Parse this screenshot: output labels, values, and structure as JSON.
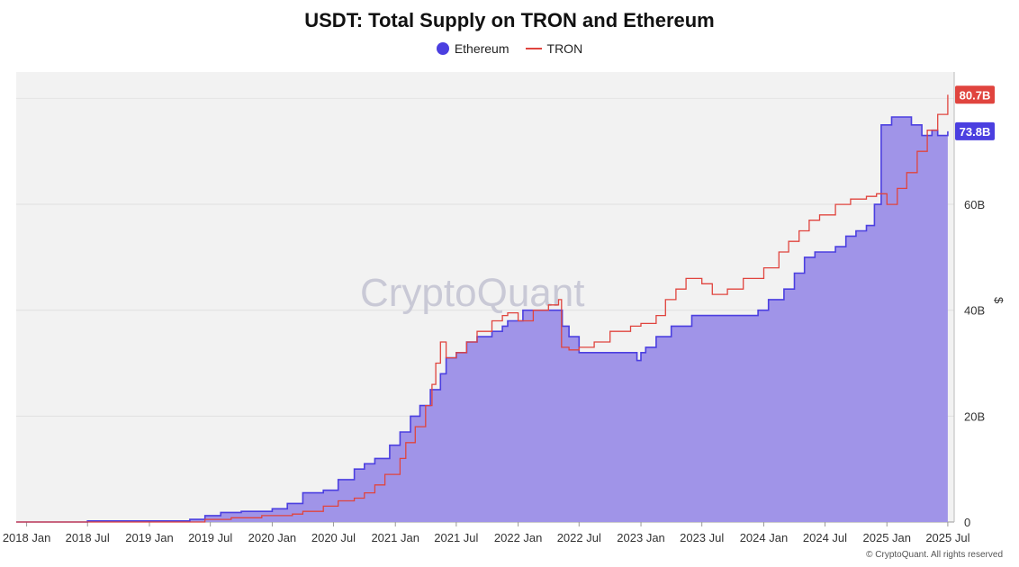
{
  "chart_data": {
    "type": "area",
    "title": "USDT: Total Supply on TRON and Ethereum",
    "xlabel": "",
    "ylabel": "$",
    "x_ticks": [
      "2018 Jan",
      "2018 Jul",
      "2019 Jan",
      "2019 Jul",
      "2020 Jan",
      "2020 Jul",
      "2021 Jan",
      "2021 Jul",
      "2022 Jan",
      "2022 Jul",
      "2023 Jan",
      "2023 Jul",
      "2024 Jan",
      "2024 Jul",
      "2025 Jan",
      "2025 Jul"
    ],
    "y_ticks": [
      "0",
      "20B",
      "40B",
      "60B"
    ],
    "ylim": [
      0,
      85
    ],
    "watermark": "CryptoQuant",
    "credit": "© CryptoQuant. All rights reserved",
    "grid": true,
    "legend_position": "top-center",
    "series": [
      {
        "name": "Ethereum",
        "style": "area",
        "color": "#4b3fe0",
        "fill": "#a094e8",
        "last_value_label": "73.8B",
        "x": [
          "2017-12-01",
          "2018-07-01",
          "2019-05-01",
          "2019-06-15",
          "2019-08-01",
          "2019-10-01",
          "2020-01-01",
          "2020-02-15",
          "2020-04-01",
          "2020-06-01",
          "2020-07-15",
          "2020-09-01",
          "2020-10-01",
          "2020-11-01",
          "2020-12-15",
          "2021-01-15",
          "2021-02-15",
          "2021-03-15",
          "2021-04-15",
          "2021-05-15",
          "2021-06-01",
          "2021-07-01",
          "2021-08-01",
          "2021-09-01",
          "2021-10-15",
          "2021-11-15",
          "2021-12-01",
          "2022-01-15",
          "2022-03-01",
          "2022-04-15",
          "2022-05-12",
          "2022-06-01",
          "2022-07-01",
          "2022-09-01",
          "2022-12-01",
          "2022-12-20",
          "2023-01-01",
          "2023-01-15",
          "2023-02-15",
          "2023-04-01",
          "2023-06-01",
          "2023-07-15",
          "2023-09-01",
          "2023-11-01",
          "2023-12-15",
          "2024-01-15",
          "2024-03-01",
          "2024-04-01",
          "2024-05-01",
          "2024-06-01",
          "2024-08-01",
          "2024-09-01",
          "2024-10-01",
          "2024-11-01",
          "2024-11-25",
          "2024-12-15",
          "2025-01-15",
          "2025-02-15",
          "2025-03-15",
          "2025-04-15",
          "2025-05-15",
          "2025-06-01",
          "2025-07-01"
        ],
        "y": [
          0,
          0.2,
          0.5,
          1.2,
          1.8,
          2.0,
          2.5,
          3.5,
          5.5,
          6.0,
          8.0,
          10.0,
          11.0,
          12.0,
          14.5,
          17.0,
          20.0,
          22.0,
          25.0,
          28.0,
          31.0,
          32.0,
          34.0,
          35.0,
          36.0,
          37.0,
          38.0,
          40.0,
          40.0,
          40.0,
          37.0,
          35.0,
          32.0,
          32.0,
          32.0,
          30.5,
          32.0,
          33.0,
          35.0,
          37.0,
          39.0,
          39.0,
          39.0,
          39.0,
          40.0,
          42.0,
          44.0,
          47.0,
          50.0,
          51.0,
          52.0,
          54.0,
          55.0,
          56.0,
          60.0,
          75.0,
          76.5,
          76.5,
          75.0,
          73.0,
          74.0,
          73.0,
          73.8
        ]
      },
      {
        "name": "TRON",
        "style": "line",
        "color": "#e0443e",
        "last_value_label": "80.7B",
        "x": [
          "2017-12-01",
          "2019-04-01",
          "2019-06-15",
          "2019-09-01",
          "2019-12-01",
          "2020-03-01",
          "2020-04-01",
          "2020-06-01",
          "2020-07-15",
          "2020-09-01",
          "2020-10-01",
          "2020-11-01",
          "2020-12-01",
          "2021-01-15",
          "2021-02-01",
          "2021-03-01",
          "2021-04-01",
          "2021-04-20",
          "2021-05-01",
          "2021-05-15",
          "2021-06-01",
          "2021-07-01",
          "2021-08-01",
          "2021-09-01",
          "2021-10-15",
          "2021-11-15",
          "2021-12-01",
          "2022-01-01",
          "2022-02-15",
          "2022-04-01",
          "2022-05-01",
          "2022-05-10",
          "2022-06-01",
          "2022-07-01",
          "2022-08-15",
          "2022-10-01",
          "2022-12-01",
          "2023-01-01",
          "2023-02-15",
          "2023-03-15",
          "2023-04-15",
          "2023-05-15",
          "2023-07-01",
          "2023-08-01",
          "2023-09-15",
          "2023-11-01",
          "2024-01-01",
          "2024-02-15",
          "2024-03-15",
          "2024-04-15",
          "2024-05-15",
          "2024-06-15",
          "2024-08-01",
          "2024-09-15",
          "2024-11-01",
          "2024-12-01",
          "2025-01-01",
          "2025-02-01",
          "2025-03-01",
          "2025-04-01",
          "2025-05-01",
          "2025-06-01",
          "2025-07-01"
        ],
        "y": [
          0,
          0,
          0.5,
          0.8,
          1.2,
          1.5,
          2.0,
          3.0,
          4.0,
          4.5,
          5.5,
          7.0,
          9.0,
          12.0,
          15.0,
          18.0,
          22.0,
          26.0,
          30.0,
          34.0,
          31.0,
          32.0,
          34.0,
          36.0,
          38.0,
          39.0,
          39.5,
          38.0,
          40.0,
          41.0,
          42.0,
          33.0,
          32.5,
          33.0,
          34.0,
          36.0,
          37.0,
          37.5,
          39.0,
          42.0,
          44.0,
          46.0,
          45.0,
          43.0,
          44.0,
          46.0,
          48.0,
          51.0,
          53.0,
          55.0,
          57.0,
          58.0,
          60.0,
          61.0,
          61.5,
          62.0,
          60.0,
          63.0,
          66.0,
          70.0,
          74.0,
          77.0,
          80.7
        ]
      }
    ]
  }
}
